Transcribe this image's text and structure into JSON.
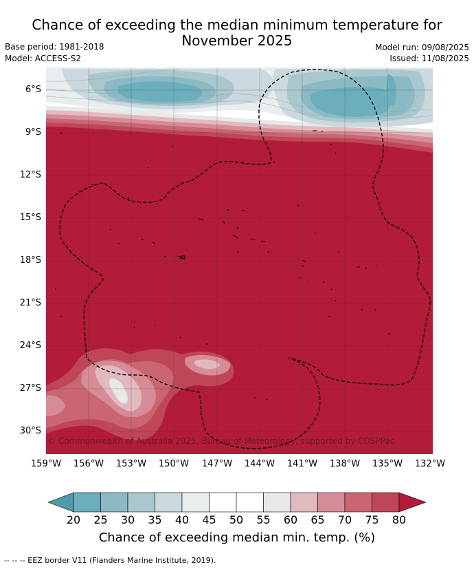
{
  "title_line1": "Chance of exceeding the median minimum temperature for",
  "title_line2": "November 2025",
  "base_period": "Base period: 1981-2018",
  "model": "Model: ACCESS-S2",
  "model_run": "Model run: 09/08/2025",
  "issued": "Issued: 11/08/2025",
  "lat_labels": [
    "6°S",
    "9°S",
    "12°S",
    "15°S",
    "18°S",
    "21°S",
    "24°S",
    "27°S",
    "30°S"
  ],
  "lon_labels": [
    "159°W",
    "156°W",
    "153°W",
    "150°W",
    "147°W",
    "144°W",
    "141°W",
    "138°W",
    "135°W",
    "132°W"
  ],
  "copyright": "© Commonwealth of Australia 2025, Bureau of Meteorology, supported by COSPPac",
  "colorbar": {
    "ticks": [
      "20",
      "25",
      "30",
      "35",
      "40",
      "45",
      "50",
      "55",
      "60",
      "65",
      "70",
      "75",
      "80"
    ],
    "colors": [
      "#4e9aa6",
      "#6aafbb",
      "#8bbac4",
      "#a9c8ce",
      "#cbd9de",
      "#e8eef0",
      "#ffffff",
      "#ffffff",
      "#e8e8e8",
      "#e3b9c0",
      "#d68c96",
      "#c96672",
      "#bf4657",
      "#b31c38"
    ],
    "label": "Chance of exceeding median min. temp. (%)"
  },
  "footnote": "--  --  -- EEZ border V11 (Flanders Marine Institute, 2019)."
}
